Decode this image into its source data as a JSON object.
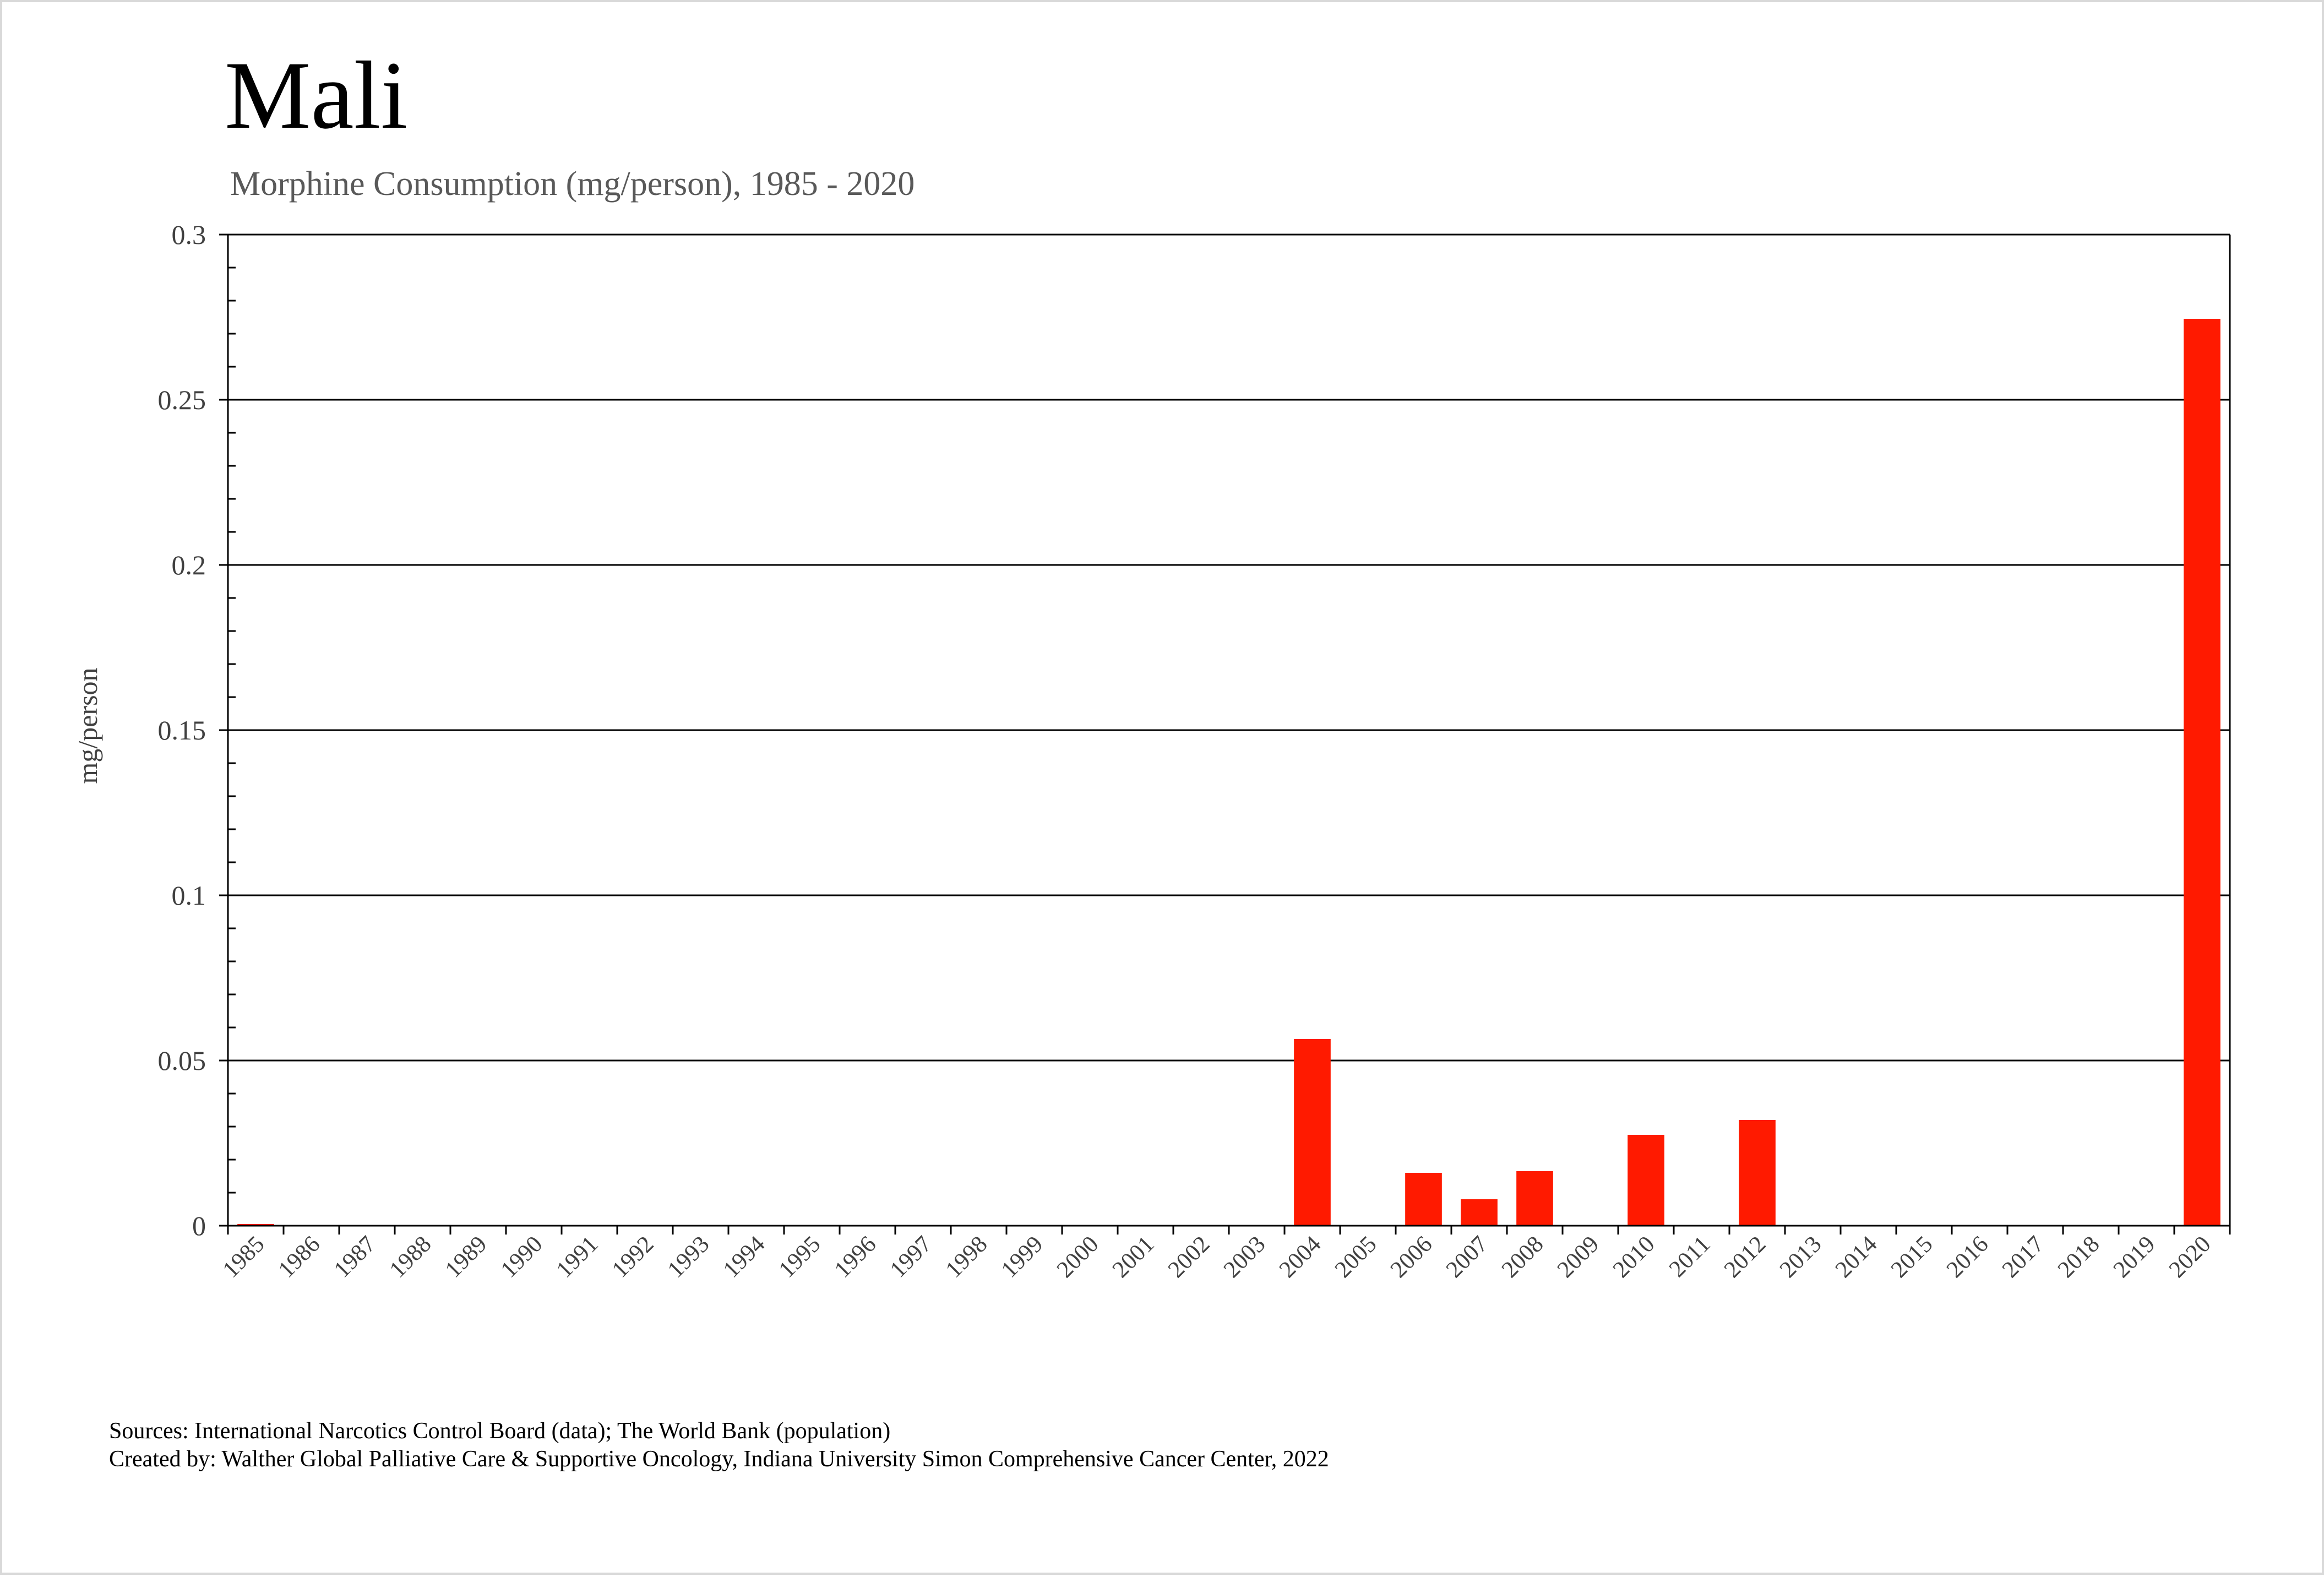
{
  "chart_data": {
    "type": "bar",
    "title": "Mali",
    "subtitle": "Morphine Consumption (mg/person), 1985 - 2020",
    "xlabel": "",
    "ylabel": "mg/person",
    "ylim": [
      0,
      0.3
    ],
    "yticks": [
      0,
      0.05,
      0.1,
      0.15,
      0.2,
      0.25,
      0.3
    ],
    "ytick_labels": [
      "0",
      "0.05",
      "0.1",
      "0.15",
      "0.2",
      "0.25",
      "0.3"
    ],
    "grid": true,
    "categories": [
      "1985",
      "1986",
      "1987",
      "1988",
      "1989",
      "1990",
      "1991",
      "1992",
      "1993",
      "1994",
      "1995",
      "1996",
      "1997",
      "1998",
      "1999",
      "2000",
      "2001",
      "2002",
      "2003",
      "2004",
      "2005",
      "2006",
      "2007",
      "2008",
      "2009",
      "2010",
      "2011",
      "2012",
      "2013",
      "2014",
      "2015",
      "2016",
      "2017",
      "2018",
      "2019",
      "2020"
    ],
    "values": [
      0.0005,
      0,
      0,
      0,
      0,
      0,
      0,
      0,
      0,
      0,
      0,
      0,
      0,
      0,
      0,
      0,
      0,
      0,
      0,
      0.0565,
      0,
      0.016,
      0.008,
      0.0165,
      0,
      0.0275,
      0,
      0.032,
      0,
      0,
      0,
      0,
      0,
      0,
      0,
      0.2745
    ],
    "colors": {
      "bar": "#ff1a00",
      "grid": "#000000",
      "axis": "#000000"
    }
  },
  "footer": {
    "sources": "Sources: International Narcotics Control Board (data); The World Bank (population)",
    "created_by": "Created by: Walther  Global Palliative Care & Supportive Oncology, Indiana University Simon Comprehensive Cancer Center, 2022"
  }
}
